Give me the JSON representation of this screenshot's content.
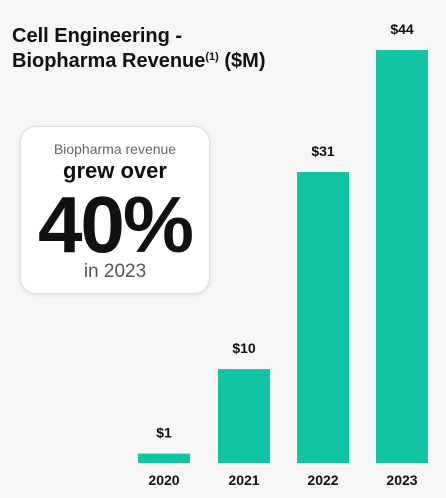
{
  "title": {
    "line1": "Cell Engineering -",
    "line2": "Biopharma Revenue",
    "footnote": "(1)",
    "unit": " ($M)"
  },
  "callout": {
    "subtitle": "Biopharma revenue",
    "headline": "grew over",
    "value": "40%",
    "period": "in 2023"
  },
  "chart_data": {
    "type": "bar",
    "title": "Cell Engineering - Biopharma Revenue(1) ($M)",
    "categories": [
      "2020",
      "2021",
      "2022",
      "2023"
    ],
    "values": [
      1,
      10,
      31,
      44
    ],
    "data_labels": [
      "$1",
      "$10",
      "$31",
      "$44"
    ],
    "bar_color": "#0fc4a0",
    "ylim": [
      0,
      44
    ],
    "grid": false,
    "xlabel": "",
    "ylabel": ""
  }
}
